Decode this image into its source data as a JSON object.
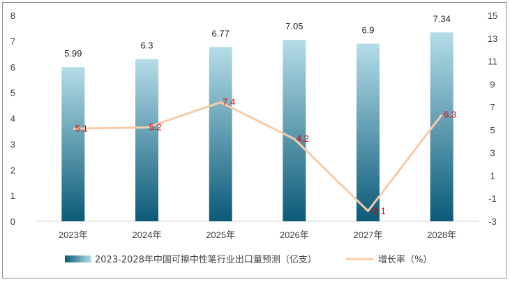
{
  "chart_data": {
    "type": "bar",
    "categories": [
      "2023年",
      "2024年",
      "2025年",
      "2026年",
      "2027年",
      "2028年"
    ],
    "series": [
      {
        "name": "2023-2028年中国可擦中性笔行业出口量预测（亿支）",
        "type": "bar",
        "axis": "left",
        "values": [
          5.99,
          6.3,
          6.77,
          7.05,
          6.9,
          7.34
        ]
      },
      {
        "name": "增长率（%）",
        "type": "line",
        "axis": "right",
        "values": [
          5.1,
          5.2,
          7.4,
          4.2,
          -2.1,
          6.3
        ]
      }
    ],
    "y_left": {
      "range": [
        0,
        8
      ],
      "ticks": [
        "0",
        "1",
        "2",
        "3",
        "4",
        "5",
        "6",
        "7",
        "8"
      ]
    },
    "y_right": {
      "range": [
        -3,
        15
      ],
      "ticks": [
        "-3",
        "-1",
        "1",
        "3",
        "5",
        "7",
        "9",
        "11",
        "13",
        "15"
      ]
    },
    "bar_labels": [
      "5.99",
      "6.3",
      "6.77",
      "7.05",
      "6.9",
      "7.34"
    ],
    "line_labels": [
      "5.1",
      "5.2",
      "7.4",
      "4.2",
      "-2.1",
      "6.3"
    ],
    "grid": false,
    "legend_position": "bottom",
    "colors": {
      "bar_top": "#b5dde8",
      "bar_bottom": "#0b5a78",
      "line": "#f8cba8",
      "line_label": "#e00000",
      "axis_text": "#404040"
    }
  }
}
